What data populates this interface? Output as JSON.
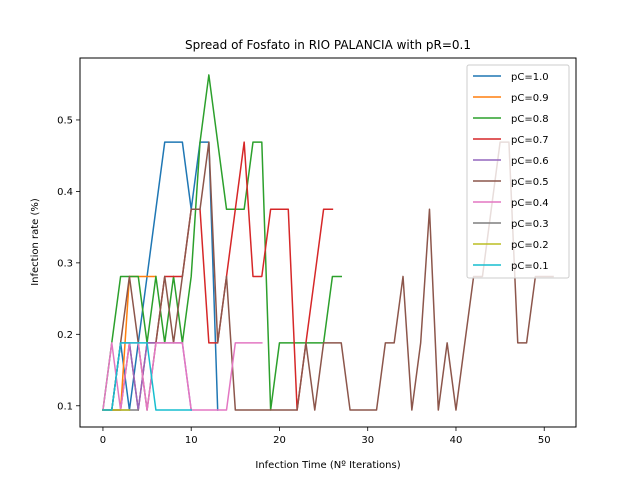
{
  "chart_data": {
    "type": "line",
    "title": "Spread of Fosfato in RIO PALANCIA with pR=0.1",
    "xlabel": "Infection Time (Nº Iterations)",
    "ylabel": "Infection rate (%)",
    "xlim": [
      -2.6,
      53.6
    ],
    "ylim": [
      0.0703,
      0.5867
    ],
    "xticks": [
      0,
      10,
      20,
      30,
      40,
      50
    ],
    "yticks": [
      0.1,
      0.2,
      0.3,
      0.4,
      0.5
    ],
    "yticks_labels": [
      "0.1",
      "0.2",
      "0.3",
      "0.4",
      "0.5"
    ],
    "grid": false,
    "legend_position": "top-right",
    "series": [
      {
        "name": "pC=1.0",
        "color": "#1f77b4",
        "x": [
          0,
          1,
          2,
          3,
          4,
          5,
          6,
          7,
          8,
          9,
          10,
          11,
          12,
          13
        ],
        "y": [
          0.094,
          0.094,
          0.188,
          0.094,
          0.188,
          0.281,
          0.375,
          0.469,
          0.469,
          0.469,
          0.375,
          0.469,
          0.469,
          0.094
        ]
      },
      {
        "name": "pC=0.9",
        "color": "#ff7f0e",
        "x": [
          0,
          1,
          2,
          3,
          4,
          5,
          6
        ],
        "y": [
          0.094,
          0.094,
          0.094,
          0.281,
          0.281,
          0.281,
          0.281
        ]
      },
      {
        "name": "pC=0.8",
        "color": "#2ca02c",
        "x": [
          0,
          1,
          2,
          3,
          4,
          5,
          6,
          7,
          8,
          9,
          10,
          11,
          12,
          13,
          14,
          15,
          16,
          17,
          18,
          19,
          20,
          21,
          22,
          23,
          24,
          25,
          26,
          27
        ],
        "y": [
          0.094,
          0.188,
          0.281,
          0.281,
          0.281,
          0.188,
          0.281,
          0.188,
          0.281,
          0.188,
          0.281,
          0.469,
          0.563,
          0.469,
          0.375,
          0.375,
          0.375,
          0.469,
          0.469,
          0.094,
          0.188,
          0.188,
          0.188,
          0.188,
          0.188,
          0.188,
          0.281,
          0.281
        ]
      },
      {
        "name": "pC=0.7",
        "color": "#d62728",
        "x": [
          0,
          1,
          2,
          3,
          4,
          5,
          6,
          7,
          8,
          9,
          10,
          11,
          12,
          13,
          14,
          15,
          16,
          17,
          18,
          19,
          20,
          21,
          22,
          23,
          24,
          25,
          26
        ],
        "y": [
          0.094,
          0.094,
          0.094,
          0.188,
          0.094,
          0.188,
          0.188,
          0.281,
          0.281,
          0.281,
          0.375,
          0.375,
          0.188,
          0.188,
          0.281,
          0.375,
          0.469,
          0.281,
          0.281,
          0.375,
          0.375,
          0.375,
          0.094,
          0.188,
          0.281,
          0.375,
          0.375
        ]
      },
      {
        "name": "pC=0.6",
        "color": "#9467bd",
        "x": [
          0,
          1,
          2,
          3,
          4,
          5,
          6,
          7,
          8,
          9,
          10
        ],
        "y": [
          0.094,
          0.094,
          0.188,
          0.188,
          0.094,
          0.188,
          0.188,
          0.188,
          0.188,
          0.188,
          0.094
        ]
      },
      {
        "name": "pC=0.5",
        "color": "#8c564b",
        "x": [
          0,
          1,
          2,
          3,
          4,
          5,
          6,
          7,
          8,
          9,
          10,
          11,
          12,
          13,
          14,
          15,
          16,
          17,
          18,
          19,
          20,
          21,
          22,
          23,
          24,
          25,
          26,
          27,
          28,
          29,
          30,
          31,
          32,
          33,
          34,
          35,
          36,
          37,
          38,
          39,
          40,
          41,
          42,
          43,
          44,
          45,
          46,
          47,
          48,
          49,
          50,
          51
        ],
        "y": [
          0.094,
          0.094,
          0.188,
          0.281,
          0.188,
          0.094,
          0.188,
          0.281,
          0.188,
          0.281,
          0.375,
          0.375,
          0.469,
          0.188,
          0.281,
          0.094,
          0.094,
          0.094,
          0.094,
          0.094,
          0.094,
          0.094,
          0.094,
          0.188,
          0.094,
          0.188,
          0.188,
          0.188,
          0.094,
          0.094,
          0.094,
          0.094,
          0.188,
          0.188,
          0.281,
          0.094,
          0.188,
          0.375,
          0.094,
          0.188,
          0.094,
          0.188,
          0.281,
          0.281,
          0.375,
          0.469,
          0.469,
          0.188,
          0.188,
          0.281,
          0.281,
          0.281
        ]
      },
      {
        "name": "pC=0.4",
        "color": "#e377c2",
        "x": [
          0,
          1,
          2,
          3,
          4,
          5,
          6,
          7,
          8,
          9,
          10,
          11,
          12,
          13,
          14,
          15,
          16,
          17,
          18
        ],
        "y": [
          0.094,
          0.188,
          0.094,
          0.188,
          0.188,
          0.094,
          0.188,
          0.188,
          0.188,
          0.188,
          0.094,
          0.094,
          0.094,
          0.094,
          0.094,
          0.188,
          0.188,
          0.188,
          0.188
        ]
      },
      {
        "name": "pC=0.3",
        "color": "#7f7f7f",
        "x": [
          0,
          1,
          2,
          3,
          4
        ],
        "y": [
          0.094,
          0.094,
          0.094,
          0.094,
          0.094
        ]
      },
      {
        "name": "pC=0.2",
        "color": "#bcbd22",
        "x": [
          0,
          1,
          2,
          3
        ],
        "y": [
          0.094,
          0.094,
          0.094,
          0.094
        ]
      },
      {
        "name": "pC=0.1",
        "color": "#17becf",
        "x": [
          0,
          1,
          2,
          3,
          4,
          5,
          6,
          7,
          8,
          9,
          10
        ],
        "y": [
          0.094,
          0.094,
          0.188,
          0.188,
          0.188,
          0.188,
          0.094,
          0.094,
          0.094,
          0.094,
          0.094
        ]
      }
    ]
  }
}
